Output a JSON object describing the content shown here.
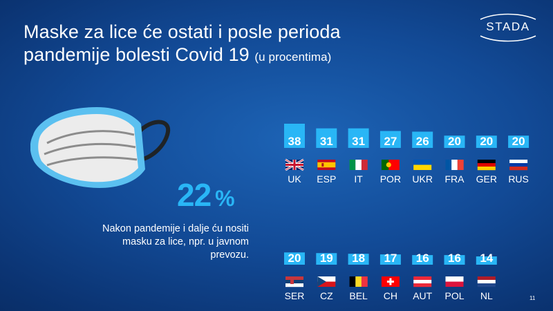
{
  "title": {
    "line1": "Maske za lice će ostati i posle perioda",
    "line2": "pandemije bolesti Covid 19",
    "sub": "(u procentima)"
  },
  "logo_text": "STADA",
  "highlight": {
    "value": "22",
    "unit": "%",
    "caption": "Nakon pandemije i dalje ću nositi masku za lice, npr. u javnom prevozu."
  },
  "page_number": "11",
  "colors": {
    "accent": "#29b6f6",
    "bar": "#29b6f6",
    "background": "#124a96"
  },
  "icons": [
    "stada-logo",
    "face-mask-illustration"
  ],
  "chart_data": {
    "type": "bar",
    "unit": "%",
    "rows": [
      {
        "categories": [
          "UK",
          "ESP",
          "IT",
          "POR",
          "UKR",
          "FRA",
          "GER",
          "RUS"
        ],
        "values": [
          38,
          31,
          31,
          27,
          26,
          20,
          20,
          20
        ],
        "flags": [
          "uk",
          "esp",
          "it",
          "por",
          "ukr",
          "fra",
          "ger",
          "rus"
        ]
      },
      {
        "categories": [
          "SER",
          "CZ",
          "BEL",
          "CH",
          "AUT",
          "POL",
          "NL"
        ],
        "values": [
          20,
          19,
          18,
          17,
          16,
          16,
          14
        ],
        "flags": [
          "ser",
          "cz",
          "bel",
          "ch",
          "aut",
          "pol",
          "nl"
        ]
      }
    ]
  }
}
